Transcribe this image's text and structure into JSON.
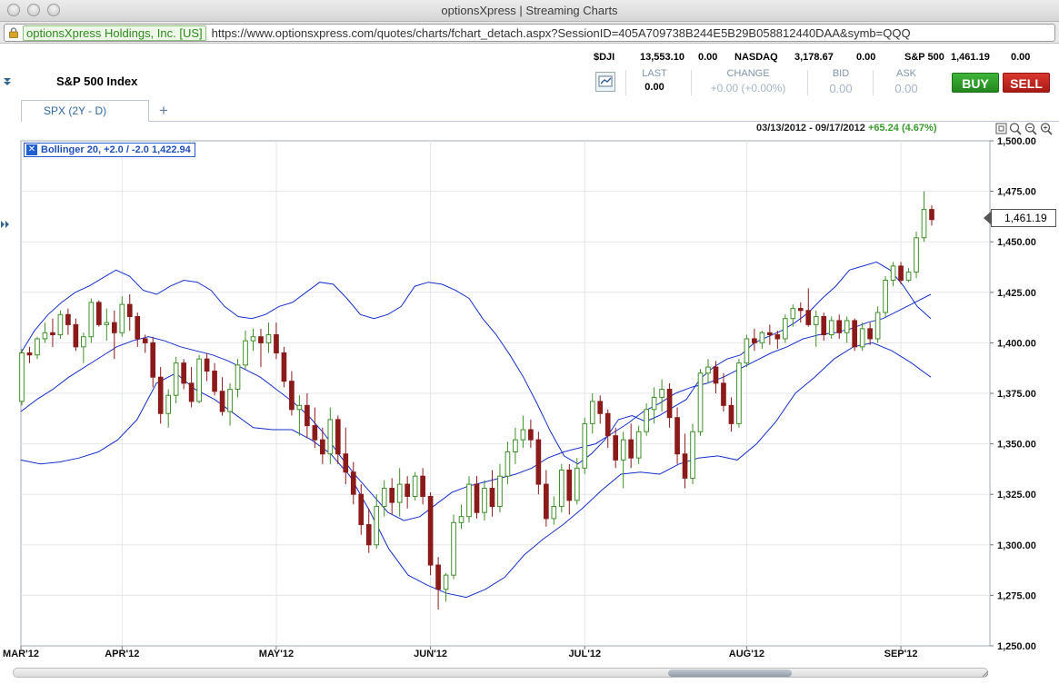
{
  "window": {
    "title": "optionsXpress | Streaming Charts"
  },
  "urlbar": {
    "cert_label": "optionsXpress Holdings, Inc. [US]",
    "url": "https://www.optionsxpress.com/quotes/charts/fchart_detach.aspx?SessionID=405A709738B244E5B29B058812440DAA&symb=QQQ"
  },
  "ticker": [
    {
      "symbol": "$DJI",
      "value": "13,553.10",
      "change": "0.00"
    },
    {
      "symbol": "NASDAQ",
      "value": "3,178.67",
      "change": "0.00"
    },
    {
      "symbol": "S&P 500",
      "value": "1,461.19",
      "change": "0.00"
    }
  ],
  "header": {
    "title": "S&P 500 Index"
  },
  "quote": {
    "last_label": "LAST",
    "last_value": "0.00",
    "change_label": "CHANGE",
    "change_value": "+0.00 (+0.00%)",
    "bid_label": "BID",
    "bid_value": "0.00",
    "ask_label": "ASK",
    "ask_value": "0.00"
  },
  "buttons": {
    "buy": "BUY",
    "sell": "SELL"
  },
  "tabs": [
    {
      "label": "SPX (2Y - D)"
    }
  ],
  "tab_add": "+",
  "chart_info": {
    "range": "03/13/2012 - 09/17/2012",
    "change": "+65.24 (4.67%)"
  },
  "indicator": {
    "label": "Bollinger 20,  +2.0  / -2.0 1,422.94"
  },
  "current_price": "1,461.19",
  "chart_data": {
    "type": "candlestick",
    "title": "S&P 500 Index",
    "ylim": [
      1250,
      1500
    ],
    "yticks": [
      "1,500.00",
      "1,475.00",
      "1,450.00",
      "1,425.00",
      "1,400.00",
      "1,375.00",
      "1,350.00",
      "1,325.00",
      "1,300.00",
      "1,275.00",
      "1,250.00"
    ],
    "xticks": [
      "MAR'12",
      "APR'12",
      "MAY'12",
      "JUN'12",
      "JUL'12",
      "AUG'12",
      "SEP'12"
    ],
    "colors": {
      "up": "#3f8f2a",
      "down": "#8b1a1a",
      "band": "#1530c8"
    },
    "candles": [
      [
        1371,
        1397,
        1369,
        1395
      ],
      [
        1395,
        1398,
        1390,
        1394
      ],
      [
        1394,
        1403,
        1392,
        1402
      ],
      [
        1402,
        1410,
        1400,
        1405
      ],
      [
        1405,
        1412,
        1398,
        1404
      ],
      [
        1404,
        1416,
        1402,
        1414
      ],
      [
        1414,
        1417,
        1404,
        1409
      ],
      [
        1409,
        1412,
        1396,
        1398
      ],
      [
        1398,
        1405,
        1390,
        1403
      ],
      [
        1403,
        1422,
        1400,
        1420
      ],
      [
        1420,
        1421,
        1408,
        1409
      ],
      [
        1409,
        1417,
        1401,
        1410
      ],
      [
        1410,
        1416,
        1392,
        1405
      ],
      [
        1405,
        1423,
        1403,
        1419
      ],
      [
        1419,
        1424,
        1406,
        1413
      ],
      [
        1413,
        1415,
        1398,
        1402
      ],
      [
        1402,
        1404,
        1395,
        1400
      ],
      [
        1400,
        1403,
        1378,
        1383
      ],
      [
        1383,
        1388,
        1360,
        1365
      ],
      [
        1365,
        1377,
        1358,
        1374
      ],
      [
        1374,
        1393,
        1370,
        1390
      ],
      [
        1390,
        1392,
        1377,
        1380
      ],
      [
        1380,
        1388,
        1368,
        1371
      ],
      [
        1371,
        1394,
        1370,
        1392
      ],
      [
        1392,
        1395,
        1381,
        1386
      ],
      [
        1386,
        1390,
        1374,
        1376
      ],
      [
        1376,
        1383,
        1364,
        1366
      ],
      [
        1366,
        1380,
        1359,
        1377
      ],
      [
        1377,
        1392,
        1373,
        1389
      ],
      [
        1389,
        1406,
        1387,
        1401
      ],
      [
        1401,
        1407,
        1396,
        1403
      ],
      [
        1403,
        1407,
        1388,
        1400
      ],
      [
        1400,
        1410,
        1395,
        1404
      ],
      [
        1404,
        1410,
        1392,
        1395
      ],
      [
        1395,
        1398,
        1378,
        1381
      ],
      [
        1381,
        1386,
        1364,
        1367
      ],
      [
        1367,
        1374,
        1354,
        1369
      ],
      [
        1369,
        1375,
        1353,
        1359
      ],
      [
        1359,
        1368,
        1348,
        1352
      ],
      [
        1352,
        1358,
        1340,
        1345
      ],
      [
        1345,
        1368,
        1340,
        1362
      ],
      [
        1362,
        1364,
        1340,
        1345
      ],
      [
        1345,
        1358,
        1330,
        1336
      ],
      [
        1336,
        1341,
        1320,
        1325
      ],
      [
        1325,
        1330,
        1305,
        1310
      ],
      [
        1310,
        1318,
        1296,
        1300
      ],
      [
        1300,
        1325,
        1298,
        1319
      ],
      [
        1319,
        1332,
        1314,
        1328
      ],
      [
        1328,
        1333,
        1315,
        1321
      ],
      [
        1321,
        1338,
        1314,
        1330
      ],
      [
        1330,
        1334,
        1318,
        1324
      ],
      [
        1324,
        1336,
        1322,
        1334
      ],
      [
        1334,
        1338,
        1320,
        1324
      ],
      [
        1324,
        1326,
        1285,
        1290
      ],
      [
        1290,
        1294,
        1268,
        1278
      ],
      [
        1278,
        1286,
        1272,
        1285
      ],
      [
        1285,
        1315,
        1283,
        1311
      ],
      [
        1311,
        1320,
        1308,
        1314
      ],
      [
        1314,
        1334,
        1311,
        1330
      ],
      [
        1330,
        1334,
        1313,
        1316
      ],
      [
        1316,
        1332,
        1312,
        1328
      ],
      [
        1328,
        1337,
        1314,
        1319
      ],
      [
        1319,
        1340,
        1316,
        1334
      ],
      [
        1334,
        1351,
        1330,
        1346
      ],
      [
        1346,
        1358,
        1340,
        1352
      ],
      [
        1352,
        1364,
        1348,
        1357
      ],
      [
        1357,
        1362,
        1348,
        1352
      ],
      [
        1352,
        1356,
        1325,
        1330
      ],
      [
        1330,
        1337,
        1309,
        1313
      ],
      [
        1313,
        1324,
        1310,
        1319
      ],
      [
        1319,
        1340,
        1316,
        1337
      ],
      [
        1337,
        1340,
        1315,
        1322
      ],
      [
        1322,
        1343,
        1320,
        1338
      ],
      [
        1338,
        1363,
        1335,
        1360
      ],
      [
        1360,
        1375,
        1355,
        1371
      ],
      [
        1371,
        1374,
        1360,
        1365
      ],
      [
        1365,
        1367,
        1348,
        1354
      ],
      [
        1354,
        1358,
        1338,
        1342
      ],
      [
        1342,
        1356,
        1328,
        1352
      ],
      [
        1352,
        1360,
        1338,
        1343
      ],
      [
        1343,
        1359,
        1340,
        1356
      ],
      [
        1356,
        1370,
        1354,
        1367
      ],
      [
        1367,
        1378,
        1360,
        1373
      ],
      [
        1373,
        1382,
        1366,
        1377
      ],
      [
        1377,
        1380,
        1358,
        1363
      ],
      [
        1363,
        1368,
        1340,
        1345
      ],
      [
        1345,
        1355,
        1328,
        1333
      ],
      [
        1333,
        1360,
        1330,
        1356
      ],
      [
        1356,
        1387,
        1354,
        1385
      ],
      [
        1385,
        1392,
        1380,
        1388
      ],
      [
        1388,
        1391,
        1375,
        1380
      ],
      [
        1380,
        1385,
        1366,
        1369
      ],
      [
        1369,
        1373,
        1356,
        1360
      ],
      [
        1360,
        1392,
        1358,
        1390
      ],
      [
        1390,
        1404,
        1388,
        1402
      ],
      [
        1402,
        1407,
        1396,
        1400
      ],
      [
        1400,
        1406,
        1397,
        1405
      ],
      [
        1405,
        1409,
        1399,
        1404
      ],
      [
        1404,
        1406,
        1397,
        1402
      ],
      [
        1402,
        1414,
        1400,
        1412
      ],
      [
        1412,
        1419,
        1408,
        1417
      ],
      [
        1417,
        1420,
        1410,
        1416
      ],
      [
        1416,
        1427,
        1408,
        1409
      ],
      [
        1409,
        1416,
        1398,
        1413
      ],
      [
        1413,
        1415,
        1401,
        1404
      ],
      [
        1404,
        1413,
        1402,
        1411
      ],
      [
        1411,
        1414,
        1402,
        1405
      ],
      [
        1405,
        1413,
        1400,
        1411
      ],
      [
        1411,
        1412,
        1396,
        1398
      ],
      [
        1398,
        1410,
        1396,
        1407
      ],
      [
        1407,
        1410,
        1399,
        1402
      ],
      [
        1402,
        1418,
        1400,
        1415
      ],
      [
        1415,
        1433,
        1413,
        1431
      ],
      [
        1431,
        1440,
        1428,
        1438
      ],
      [
        1438,
        1440,
        1429,
        1431
      ],
      [
        1431,
        1437,
        1430,
        1435
      ],
      [
        1435,
        1455,
        1432,
        1452
      ],
      [
        1452,
        1475,
        1450,
        1466
      ],
      [
        1466,
        1468,
        1458,
        1461
      ]
    ],
    "bollinger_upper": [
      1395,
      1406,
      1414,
      1420,
      1425,
      1428,
      1432,
      1436,
      1433,
      1426,
      1424,
      1428,
      1431,
      1430,
      1426,
      1418,
      1413,
      1412,
      1414,
      1418,
      1420,
      1425,
      1430,
      1429,
      1422,
      1414,
      1412,
      1414,
      1418,
      1428,
      1430,
      1429,
      1426,
      1422,
      1412,
      1404,
      1394,
      1383,
      1370,
      1356,
      1344,
      1340,
      1345,
      1352,
      1362,
      1364,
      1361,
      1364,
      1368,
      1372,
      1382,
      1388,
      1392,
      1394,
      1400,
      1403,
      1406,
      1410,
      1415,
      1422,
      1428,
      1436,
      1438,
      1440,
      1436,
      1428,
      1418,
      1412
    ],
    "bollinger_middle": [
      1366,
      1372,
      1377,
      1383,
      1388,
      1393,
      1398,
      1401,
      1403,
      1401,
      1398,
      1396,
      1394,
      1391,
      1387,
      1383,
      1377,
      1371,
      1364,
      1355,
      1344,
      1334,
      1325,
      1316,
      1312,
      1314,
      1320,
      1326,
      1329,
      1331,
      1333,
      1335,
      1338,
      1343,
      1346,
      1348,
      1350,
      1355,
      1360,
      1366,
      1370,
      1375,
      1378,
      1380,
      1383,
      1387,
      1391,
      1395,
      1398,
      1402,
      1404,
      1405,
      1407,
      1410,
      1412,
      1416,
      1420,
      1424
    ],
    "bollinger_lower": [
      1342,
      1340,
      1341,
      1343,
      1346,
      1352,
      1362,
      1380,
      1385,
      1377,
      1372,
      1365,
      1358,
      1357,
      1357,
      1352,
      1345,
      1334,
      1317,
      1298,
      1285,
      1280,
      1276,
      1274,
      1278,
      1284,
      1295,
      1303,
      1310,
      1318,
      1327,
      1335,
      1336,
      1335,
      1340,
      1343,
      1344,
      1342,
      1350,
      1361,
      1375,
      1383,
      1392,
      1398,
      1400,
      1396,
      1390,
      1383
    ]
  }
}
